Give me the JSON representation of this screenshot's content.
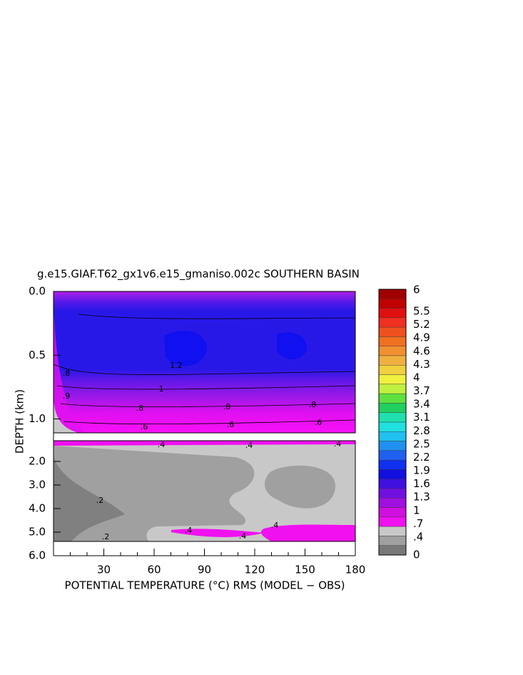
{
  "chart_data": {
    "type": "contour",
    "title": "g.e15.GIAF.T62_gx1v6.e15_gmaniso.002c SOUTHERN BASIN",
    "xlabel": "POTENTIAL TEMPERATURE (°C) RMS (MODEL − OBS)",
    "ylabel": "DEPTH (km)",
    "xlim": [
      0,
      180
    ],
    "xticks": [
      30,
      60,
      90,
      120,
      150,
      180
    ],
    "ylim": [
      0,
      6
    ],
    "yticks": [
      {
        "value": 0,
        "label": "0.0"
      },
      {
        "value": 0.5,
        "label": "0.5"
      },
      {
        "value": 1,
        "label": "1.0"
      },
      {
        "value": 2,
        "label": "2.0"
      },
      {
        "value": 3,
        "label": "3.0"
      },
      {
        "value": 4,
        "label": "4.0"
      },
      {
        "value": 5,
        "label": "5.0"
      },
      {
        "value": 6,
        "label": "6.0"
      }
    ],
    "colorbar": {
      "ticks": [
        6,
        5.5,
        5.2,
        4.9,
        4.6,
        4.3,
        4,
        3.7,
        3.4,
        3.1,
        2.8,
        2.5,
        2.2,
        1.9,
        1.6,
        1.3,
        1,
        {
          "value": 0.7,
          "label": ".7"
        },
        {
          "value": 0.4,
          "label": ".4"
        },
        0
      ],
      "colors": [
        "#a00000",
        "#c00000",
        "#e01010",
        "#f03020",
        "#f05020",
        "#f07020",
        "#f09030",
        "#f0b040",
        "#f0d040",
        "#f0f040",
        "#c0f040",
        "#60e040",
        "#20d060",
        "#20e0b0",
        "#20e0e0",
        "#20c0f0",
        "#2090f0",
        "#2060f0",
        "#1030f0",
        "#1010e0",
        "#4010e0",
        "#7010e0",
        "#a010e0",
        "#d010e0",
        "#f010f0",
        "#c8c8c8",
        "#a0a0a0",
        "#787878"
      ]
    },
    "contour_labels": [
      ".8",
      ".9",
      ".8",
      ".6",
      "1",
      "1.2",
      ".8",
      ".6",
      ".8",
      ".6",
      ".4",
      ".4",
      ".4",
      ".2",
      ".2",
      ".4",
      ".4",
      ".4"
    ]
  }
}
